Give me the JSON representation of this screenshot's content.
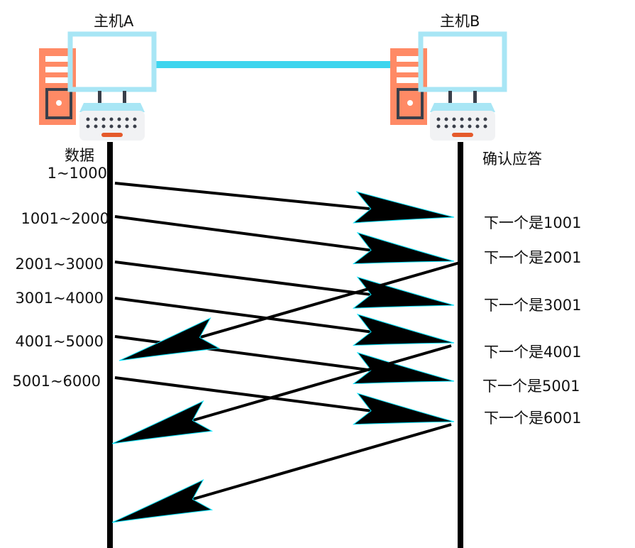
{
  "host_a": {
    "title": "主机A",
    "data_label": "数据"
  },
  "host_b": {
    "title": "主机B",
    "ack_label": "确认应答"
  },
  "segments": [
    "1~1000",
    "1001~2000",
    "2001~3000",
    "3001~4000",
    "4001~5000",
    "5001~6000"
  ],
  "acks": [
    "下一个是1001",
    "下一个是2001",
    "下一个是3001",
    "下一个是4001",
    "下一个是5001",
    "下一个是6001"
  ],
  "colors": {
    "tower": "#FF8A65",
    "monitor": "#A8E6F5",
    "link": "#3DD5EE",
    "keyboard_body": "#F1F2F4",
    "keyboard_keys": "#3A3F4A",
    "keyboard_bar": "#E55A2B",
    "timeline": "#000000",
    "arrow_outline": "#00E5FF"
  },
  "icons": [
    "server-tower-icon",
    "monitor-icon",
    "keyboard-icon"
  ]
}
